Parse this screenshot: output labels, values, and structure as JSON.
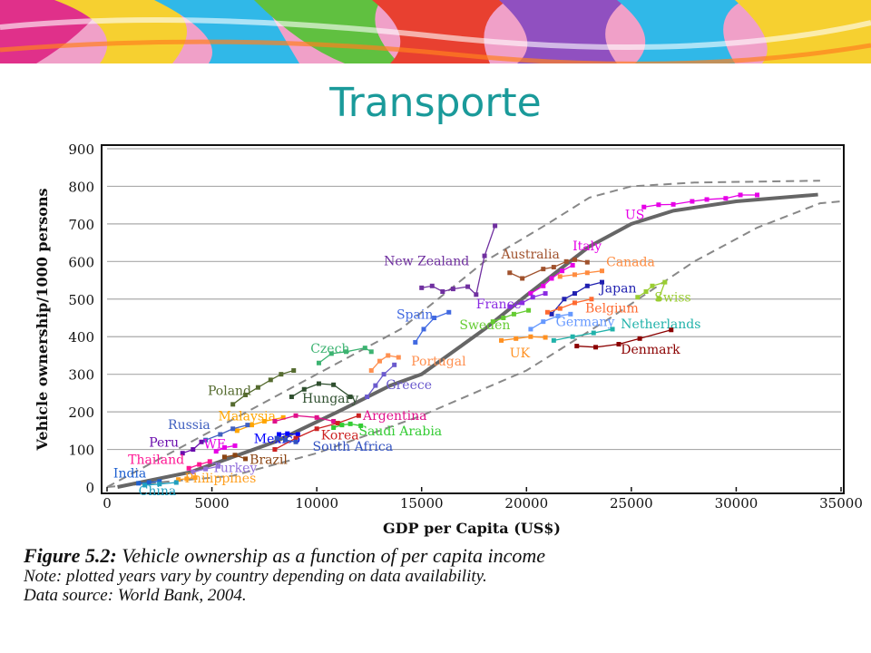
{
  "slide": {
    "title": "Transporte"
  },
  "colors": {
    "title": "#1a9a9a",
    "trend": "#666666",
    "envelope": "#888888",
    "grid": "#aaaaaa"
  },
  "caption": {
    "figure_label": "Figure 5.2:",
    "figure_text": "Vehicle ownership as a function of per capita income",
    "note": "Note: plotted years vary by country depending on data availability.",
    "source": "Data source: World Bank, 2004."
  },
  "chart_data": {
    "type": "scatter",
    "xlabel": "GDP per Capita (US$)",
    "ylabel": "Vehicle ownership/1000 persons",
    "xlim": [
      0,
      35000
    ],
    "ylim": [
      0,
      900
    ],
    "x_ticks": [
      "0",
      "5000",
      "10000",
      "15000",
      "20000",
      "25000",
      "30000",
      "35000"
    ],
    "y_ticks": [
      "0",
      "100",
      "200",
      "300",
      "400",
      "500",
      "600",
      "700",
      "800",
      "900"
    ],
    "grid": true,
    "trend_line": {
      "points": [
        [
          500,
          0
        ],
        [
          4000,
          40
        ],
        [
          8000,
          120
        ],
        [
          11000,
          200
        ],
        [
          13500,
          270
        ],
        [
          15000,
          300
        ],
        [
          18000,
          420
        ],
        [
          20000,
          510
        ],
        [
          23000,
          640
        ],
        [
          25000,
          700
        ],
        [
          27000,
          735
        ],
        [
          30000,
          760
        ],
        [
          33900,
          778
        ]
      ]
    },
    "envelope_upper": [
      [
        0,
        0
      ],
      [
        3000,
        90
      ],
      [
        7000,
        210
      ],
      [
        10000,
        300
      ],
      [
        14000,
        420
      ],
      [
        18000,
        600
      ],
      [
        21000,
        700
      ],
      [
        23000,
        770
      ],
      [
        25000,
        800
      ],
      [
        28000,
        810
      ],
      [
        34000,
        815
      ]
    ],
    "envelope_lower": [
      [
        0,
        0
      ],
      [
        6000,
        30
      ],
      [
        10000,
        90
      ],
      [
        15000,
        190
      ],
      [
        20000,
        310
      ],
      [
        24000,
        450
      ],
      [
        28000,
        600
      ],
      [
        31000,
        690
      ],
      [
        34000,
        755
      ],
      [
        35000,
        760
      ]
    ],
    "series": [
      {
        "name": "US",
        "color": "#e600e6",
        "label_pos": [
          24700,
          713
        ],
        "values": [
          [
            25600,
            745
          ],
          [
            26300,
            751
          ],
          [
            27000,
            752
          ],
          [
            27900,
            760
          ],
          [
            28600,
            765
          ],
          [
            29500,
            768
          ],
          [
            30200,
            777
          ],
          [
            31000,
            777
          ]
        ]
      },
      {
        "name": "New Zealand",
        "color": "#7030a0",
        "label_pos": [
          13200,
          590
        ],
        "values": [
          [
            15000,
            530
          ],
          [
            15500,
            535
          ],
          [
            16000,
            520
          ],
          [
            16500,
            527
          ],
          [
            17200,
            533
          ],
          [
            17600,
            512
          ],
          [
            18000,
            615
          ],
          [
            18500,
            695
          ]
        ]
      },
      {
        "name": "Australia",
        "color": "#a0522d",
        "label_pos": [
          18800,
          608
        ],
        "values": [
          [
            19200,
            570
          ],
          [
            19800,
            555
          ],
          [
            20800,
            580
          ],
          [
            21300,
            585
          ],
          [
            21900,
            600
          ],
          [
            22300,
            605
          ],
          [
            22900,
            598
          ]
        ]
      },
      {
        "name": "Italy",
        "color": "#e600e6",
        "label_pos": [
          22200,
          630
        ],
        "values": [
          [
            20200,
            515
          ],
          [
            20800,
            535
          ],
          [
            21200,
            555
          ],
          [
            21700,
            575
          ],
          [
            22200,
            590
          ]
        ]
      },
      {
        "name": "Canada",
        "color": "#ff8c40",
        "label_pos": [
          23800,
          587
        ],
        "values": [
          [
            21600,
            560
          ],
          [
            22300,
            565
          ],
          [
            22900,
            570
          ],
          [
            23600,
            575
          ]
        ]
      },
      {
        "name": "Japan",
        "color": "#2020b0",
        "label_pos": [
          23500,
          518
        ],
        "values": [
          [
            21200,
            460
          ],
          [
            21800,
            500
          ],
          [
            22300,
            515
          ],
          [
            22900,
            535
          ],
          [
            23600,
            545
          ]
        ]
      },
      {
        "name": "Swiss",
        "color": "#9acd32",
        "label_pos": [
          26100,
          493
        ],
        "values": [
          [
            25300,
            505
          ],
          [
            25700,
            520
          ],
          [
            26000,
            535
          ],
          [
            26600,
            545
          ],
          [
            26300,
            500
          ]
        ]
      },
      {
        "name": "Belgium",
        "color": "#ff6a30",
        "label_pos": [
          22800,
          465
        ],
        "values": [
          [
            21000,
            465
          ],
          [
            21600,
            475
          ],
          [
            22300,
            490
          ],
          [
            23100,
            500
          ]
        ]
      },
      {
        "name": "France",
        "color": "#8a2be2",
        "label_pos": [
          17600,
          475
        ],
        "values": [
          [
            19200,
            480
          ],
          [
            19800,
            490
          ],
          [
            20300,
            505
          ],
          [
            20900,
            515
          ]
        ]
      },
      {
        "name": "Sweden",
        "color": "#66cc33",
        "label_pos": [
          16800,
          420
        ],
        "values": [
          [
            18400,
            440
          ],
          [
            18900,
            450
          ],
          [
            19400,
            460
          ],
          [
            20100,
            470
          ]
        ]
      },
      {
        "name": "Germany",
        "color": "#6699ff",
        "label_pos": [
          21400,
          428
        ],
        "values": [
          [
            20200,
            420
          ],
          [
            20800,
            440
          ],
          [
            21500,
            455
          ],
          [
            22100,
            460
          ]
        ]
      },
      {
        "name": "Netherlands",
        "color": "#20b2aa",
        "label_pos": [
          24500,
          422
        ],
        "values": [
          [
            21300,
            390
          ],
          [
            22200,
            400
          ],
          [
            23200,
            410
          ],
          [
            24100,
            420
          ]
        ]
      },
      {
        "name": "UK",
        "color": "#ff9020",
        "label_pos": [
          19200,
          345
        ],
        "values": [
          [
            18800,
            390
          ],
          [
            19500,
            395
          ],
          [
            20200,
            400
          ],
          [
            20900,
            398
          ]
        ]
      },
      {
        "name": "Denmark",
        "color": "#8b0000",
        "label_pos": [
          24500,
          355
        ],
        "values": [
          [
            22400,
            375
          ],
          [
            23300,
            372
          ],
          [
            24400,
            380
          ],
          [
            25400,
            395
          ],
          [
            26900,
            418
          ]
        ]
      },
      {
        "name": "Spain",
        "color": "#4169e1",
        "label_pos": [
          13800,
          447
        ],
        "values": [
          [
            14700,
            385
          ],
          [
            15100,
            420
          ],
          [
            15600,
            450
          ],
          [
            16300,
            465
          ]
        ]
      },
      {
        "name": "Czech",
        "color": "#3cb371",
        "label_pos": [
          9700,
          357
        ],
        "values": [
          [
            10100,
            330
          ],
          [
            10700,
            355
          ],
          [
            11400,
            360
          ],
          [
            12300,
            370
          ],
          [
            12600,
            360
          ]
        ]
      },
      {
        "name": "Portugal",
        "color": "#ff9050",
        "label_pos": [
          14500,
          323
        ],
        "values": [
          [
            12600,
            310
          ],
          [
            13000,
            335
          ],
          [
            13400,
            350
          ],
          [
            13900,
            345
          ]
        ]
      },
      {
        "name": "Greece",
        "color": "#6a5acd",
        "label_pos": [
          13300,
          260
        ],
        "values": [
          [
            12400,
            240
          ],
          [
            12800,
            270
          ],
          [
            13200,
            300
          ],
          [
            13700,
            325
          ]
        ]
      },
      {
        "name": "Poland",
        "color": "#556b2f",
        "label_pos": [
          4800,
          245
        ],
        "values": [
          [
            6000,
            220
          ],
          [
            6600,
            245
          ],
          [
            7200,
            265
          ],
          [
            7800,
            285
          ],
          [
            8300,
            300
          ],
          [
            8900,
            310
          ]
        ]
      },
      {
        "name": "Hungary",
        "color": "#2f4f2f",
        "label_pos": [
          9300,
          225
        ],
        "values": [
          [
            8800,
            240
          ],
          [
            9400,
            260
          ],
          [
            10100,
            275
          ],
          [
            10800,
            272
          ],
          [
            11600,
            240
          ]
        ]
      },
      {
        "name": "Malaysia",
        "color": "#ffa500",
        "label_pos": [
          5300,
          177
        ],
        "values": [
          [
            6200,
            150
          ],
          [
            6900,
            165
          ],
          [
            7500,
            175
          ],
          [
            8400,
            185
          ]
        ]
      },
      {
        "name": "Argentina",
        "color": "#e0108a",
        "label_pos": [
          12200,
          178
        ],
        "values": [
          [
            8000,
            175
          ],
          [
            9000,
            190
          ],
          [
            10000,
            185
          ],
          [
            10800,
            175
          ]
        ]
      },
      {
        "name": "Russia",
        "color": "#4060c0",
        "label_pos": [
          2900,
          155
        ],
        "values": [
          [
            4700,
            125
          ],
          [
            5400,
            140
          ],
          [
            6000,
            155
          ],
          [
            6700,
            165
          ]
        ]
      },
      {
        "name": "Mexico",
        "color": "#0000ff",
        "label_pos": [
          7000,
          117
        ],
        "values": [
          [
            8200,
            140
          ],
          [
            8600,
            142
          ],
          [
            9100,
            140
          ]
        ]
      },
      {
        "name": "Korea",
        "color": "#cc2222",
        "label_pos": [
          10200,
          127
        ],
        "values": [
          [
            8000,
            100
          ],
          [
            9000,
            130
          ],
          [
            10000,
            155
          ],
          [
            11000,
            170
          ],
          [
            12000,
            190
          ]
        ]
      },
      {
        "name": "Saudi Arabia",
        "color": "#33cc33",
        "label_pos": [
          12000,
          137
        ],
        "values": [
          [
            10800,
            158
          ],
          [
            11200,
            165
          ],
          [
            11600,
            168
          ],
          [
            12100,
            163
          ]
        ]
      },
      {
        "name": "South Africa",
        "color": "#3050c0",
        "label_pos": [
          9800,
          97
        ],
        "values": [
          [
            8100,
            130
          ],
          [
            8500,
            125
          ],
          [
            9000,
            120
          ]
        ]
      },
      {
        "name": "Peru",
        "color": "#6a0dad",
        "label_pos": [
          2000,
          107
        ],
        "values": [
          [
            3600,
            90
          ],
          [
            4100,
            100
          ],
          [
            4500,
            120
          ]
        ]
      },
      {
        "name": "WE",
        "color": "#e600e6",
        "label_pos": [
          4600,
          102
        ],
        "values": [
          [
            5200,
            95
          ],
          [
            5600,
            105
          ],
          [
            6100,
            110
          ]
        ]
      },
      {
        "name": "Brazil",
        "color": "#8b4513",
        "label_pos": [
          6800,
          62
        ],
        "values": [
          [
            5600,
            80
          ],
          [
            6100,
            85
          ],
          [
            6600,
            75
          ]
        ]
      },
      {
        "name": "Thailand",
        "color": "#ff1493",
        "label_pos": [
          1000,
          62
        ],
        "values": [
          [
            3900,
            50
          ],
          [
            4400,
            60
          ],
          [
            4900,
            68
          ]
        ]
      },
      {
        "name": "Turkey",
        "color": "#9370db",
        "label_pos": [
          5000,
          40
        ],
        "values": [
          [
            4100,
            40
          ],
          [
            4700,
            48
          ],
          [
            5300,
            55
          ]
        ]
      },
      {
        "name": "India",
        "color": "#1e60d0",
        "label_pos": [
          300,
          25
        ],
        "values": [
          [
            1500,
            10
          ],
          [
            2000,
            12
          ],
          [
            2500,
            15
          ]
        ]
      },
      {
        "name": "Philippines",
        "color": "#ffa020",
        "label_pos": [
          3700,
          12
        ],
        "values": [
          [
            3400,
            20
          ],
          [
            3800,
            22
          ],
          [
            4200,
            25
          ]
        ]
      },
      {
        "name": "China",
        "color": "#20a0c0",
        "label_pos": [
          1500,
          -22
        ],
        "values": [
          [
            1800,
            5
          ],
          [
            2500,
            8
          ],
          [
            3300,
            12
          ]
        ]
      }
    ]
  }
}
